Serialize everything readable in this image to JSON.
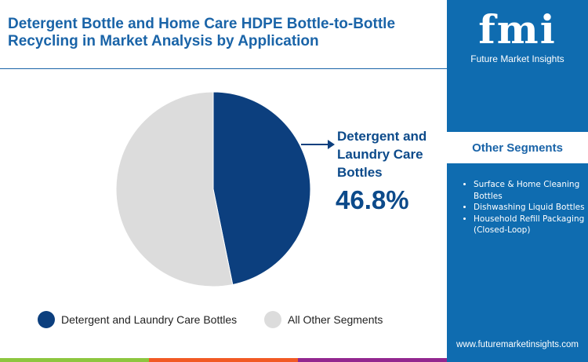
{
  "title": "Detergent Bottle and Home Care HDPE Bottle-to-Bottle Recycling in Market Analysis by Application",
  "logo": {
    "mark": "fmi",
    "name": "Future Market Insights"
  },
  "other_segments": {
    "heading": "Other Segments",
    "items": [
      "Surface & Home Cleaning Bottles",
      "Dishwashing Liquid Bottles",
      "Household Refill Packaging (Closed-Loop)"
    ]
  },
  "url": "www.futuremarketinsights.com",
  "callout": {
    "label": "Detergent and Laundry Care Bottles",
    "value": "46.8%"
  },
  "colors": {
    "primary": "#0c3f7e",
    "other": "#dcdcdc",
    "panel": "#0f6cb0",
    "bar": [
      "#8dc63f",
      "#f15a24",
      "#92278f",
      "#0f6cb0"
    ]
  },
  "chart_data": {
    "type": "pie",
    "slices": [
      {
        "label": "Detergent and Laundry Care Bottles",
        "value": 46.8,
        "color": "#0c3f7e"
      },
      {
        "label": "All Other Segments",
        "value": 53.2,
        "color": "#dcdcdc"
      }
    ],
    "legend": "bottom"
  }
}
